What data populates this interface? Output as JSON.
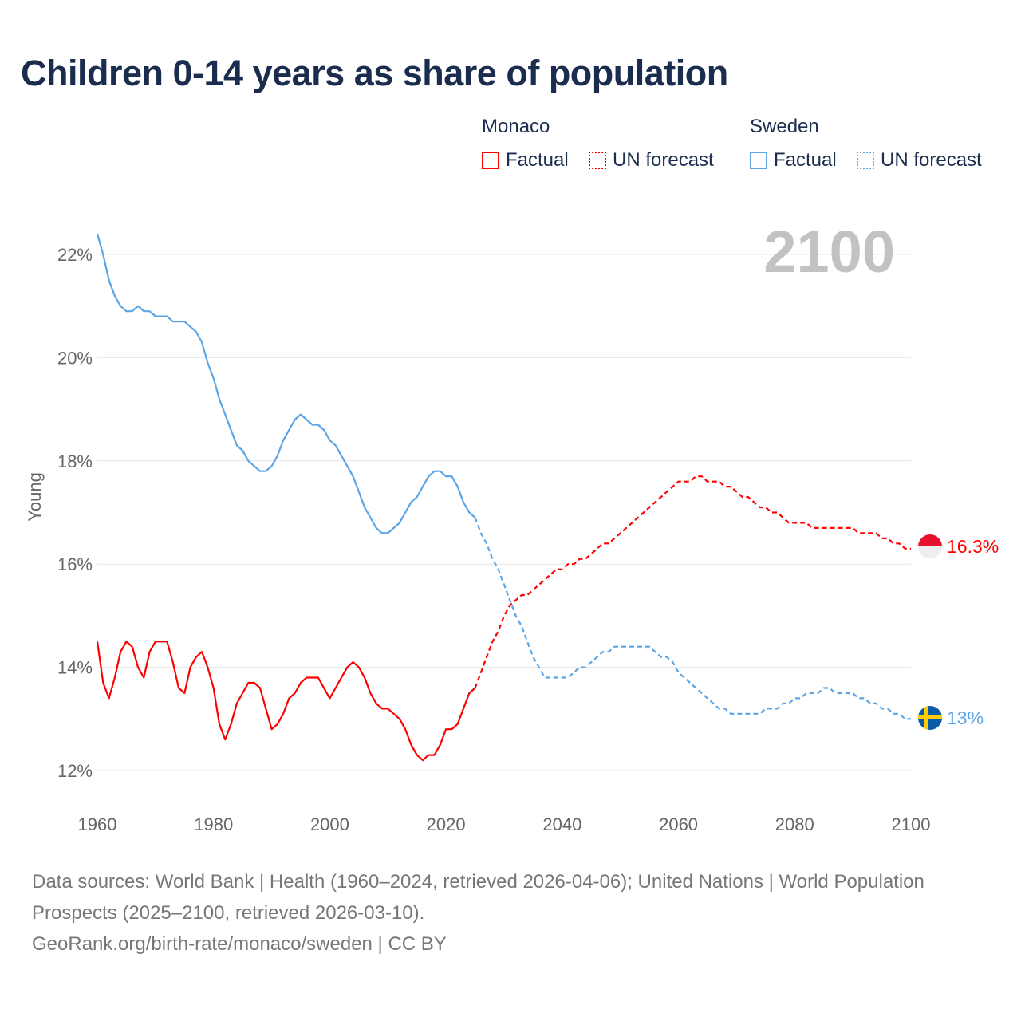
{
  "title": "Children 0-14 years as share of population",
  "legend": {
    "groups": [
      {
        "name": "Monaco",
        "color": "#ff0000",
        "items": [
          "Factual",
          "UN forecast"
        ]
      },
      {
        "name": "Sweden",
        "color": "#5aa5e8",
        "items": [
          "Factual",
          "UN forecast"
        ]
      }
    ]
  },
  "year_label": "2100",
  "end_labels": {
    "monaco": "16.3%",
    "sweden": "13%"
  },
  "footer": {
    "line1": "Data sources: World Bank | Health (1960–2024, retrieved 2026-04-06); United Nations | World Population Prospects (2025–2100, retrieved 2026-03-10).",
    "line2": "GeoRank.org/birth-rate/monaco/sweden | CC BY"
  },
  "chart_data": {
    "type": "line",
    "title": "Children 0-14 years as share of population",
    "xlabel": "",
    "ylabel": "Young",
    "xlim": [
      1960,
      2100
    ],
    "ylim": [
      11.5,
      22.8
    ],
    "xticks": [
      1960,
      1980,
      2000,
      2020,
      2040,
      2060,
      2080,
      2100
    ],
    "yticks": [
      12,
      14,
      16,
      18,
      20,
      22
    ],
    "ytick_labels": [
      "12%",
      "14%",
      "16%",
      "18%",
      "20%",
      "22%"
    ],
    "grid": true,
    "legend_position": "top-right",
    "series": [
      {
        "name": "Monaco Factual",
        "color": "#ff0000",
        "style": "solid",
        "start_year": 1960,
        "values": [
          14.5,
          13.7,
          13.4,
          13.8,
          14.3,
          14.5,
          14.4,
          14.0,
          13.8,
          14.3,
          14.5,
          14.5,
          14.5,
          14.1,
          13.6,
          13.5,
          14.0,
          14.2,
          14.3,
          14.0,
          13.6,
          12.9,
          12.6,
          12.9,
          13.3,
          13.5,
          13.7,
          13.7,
          13.6,
          13.2,
          12.8,
          12.9,
          13.1,
          13.4,
          13.5,
          13.7,
          13.8,
          13.8,
          13.8,
          13.6,
          13.4,
          13.6,
          13.8,
          14.0,
          14.1,
          14.0,
          13.8,
          13.5,
          13.3,
          13.2,
          13.2,
          13.1,
          13.0,
          12.8,
          12.5,
          12.3,
          12.2,
          12.3,
          12.3,
          12.5,
          12.8,
          12.8,
          12.9,
          13.2,
          13.5,
          13.6
        ]
      },
      {
        "name": "Monaco UN forecast",
        "color": "#ff0000",
        "style": "dashed",
        "start_year": 2025,
        "values": [
          13.6,
          13.9,
          14.2,
          14.5,
          14.7,
          15.0,
          15.2,
          15.3,
          15.4,
          15.4,
          15.5,
          15.6,
          15.7,
          15.8,
          15.9,
          15.9,
          16.0,
          16.0,
          16.1,
          16.1,
          16.2,
          16.3,
          16.4,
          16.4,
          16.5,
          16.6,
          16.7,
          16.8,
          16.9,
          17.0,
          17.1,
          17.2,
          17.3,
          17.4,
          17.5,
          17.6,
          17.6,
          17.6,
          17.7,
          17.7,
          17.6,
          17.6,
          17.6,
          17.5,
          17.5,
          17.4,
          17.3,
          17.3,
          17.2,
          17.1,
          17.1,
          17.0,
          17.0,
          16.9,
          16.8,
          16.8,
          16.8,
          16.8,
          16.7,
          16.7,
          16.7,
          16.7,
          16.7,
          16.7,
          16.7,
          16.7,
          16.6,
          16.6,
          16.6,
          16.6,
          16.5,
          16.5,
          16.4,
          16.4,
          16.3,
          16.3
        ]
      },
      {
        "name": "Sweden Factual",
        "color": "#5aa5e8",
        "style": "solid",
        "start_year": 1960,
        "values": [
          22.4,
          22.0,
          21.5,
          21.2,
          21.0,
          20.9,
          20.9,
          21.0,
          20.9,
          20.9,
          20.8,
          20.8,
          20.8,
          20.7,
          20.7,
          20.7,
          20.6,
          20.5,
          20.3,
          19.9,
          19.6,
          19.2,
          18.9,
          18.6,
          18.3,
          18.2,
          18.0,
          17.9,
          17.8,
          17.8,
          17.9,
          18.1,
          18.4,
          18.6,
          18.8,
          18.9,
          18.8,
          18.7,
          18.7,
          18.6,
          18.4,
          18.3,
          18.1,
          17.9,
          17.7,
          17.4,
          17.1,
          16.9,
          16.7,
          16.6,
          16.6,
          16.7,
          16.8,
          17.0,
          17.2,
          17.3,
          17.5,
          17.7,
          17.8,
          17.8,
          17.7,
          17.7,
          17.5,
          17.2,
          17.0,
          16.9
        ]
      },
      {
        "name": "Sweden UN forecast",
        "color": "#5aa5e8",
        "style": "dashed",
        "start_year": 2025,
        "values": [
          16.9,
          16.6,
          16.4,
          16.1,
          15.9,
          15.6,
          15.3,
          15.0,
          14.8,
          14.5,
          14.2,
          14.0,
          13.8,
          13.8,
          13.8,
          13.8,
          13.8,
          13.9,
          14.0,
          14.0,
          14.1,
          14.2,
          14.3,
          14.3,
          14.4,
          14.4,
          14.4,
          14.4,
          14.4,
          14.4,
          14.4,
          14.3,
          14.2,
          14.2,
          14.1,
          13.9,
          13.8,
          13.7,
          13.6,
          13.5,
          13.4,
          13.3,
          13.2,
          13.2,
          13.1,
          13.1,
          13.1,
          13.1,
          13.1,
          13.1,
          13.2,
          13.2,
          13.2,
          13.3,
          13.3,
          13.4,
          13.4,
          13.5,
          13.5,
          13.5,
          13.6,
          13.6,
          13.5,
          13.5,
          13.5,
          13.5,
          13.4,
          13.4,
          13.3,
          13.3,
          13.2,
          13.2,
          13.1,
          13.1,
          13.0,
          13.0
        ]
      }
    ]
  }
}
